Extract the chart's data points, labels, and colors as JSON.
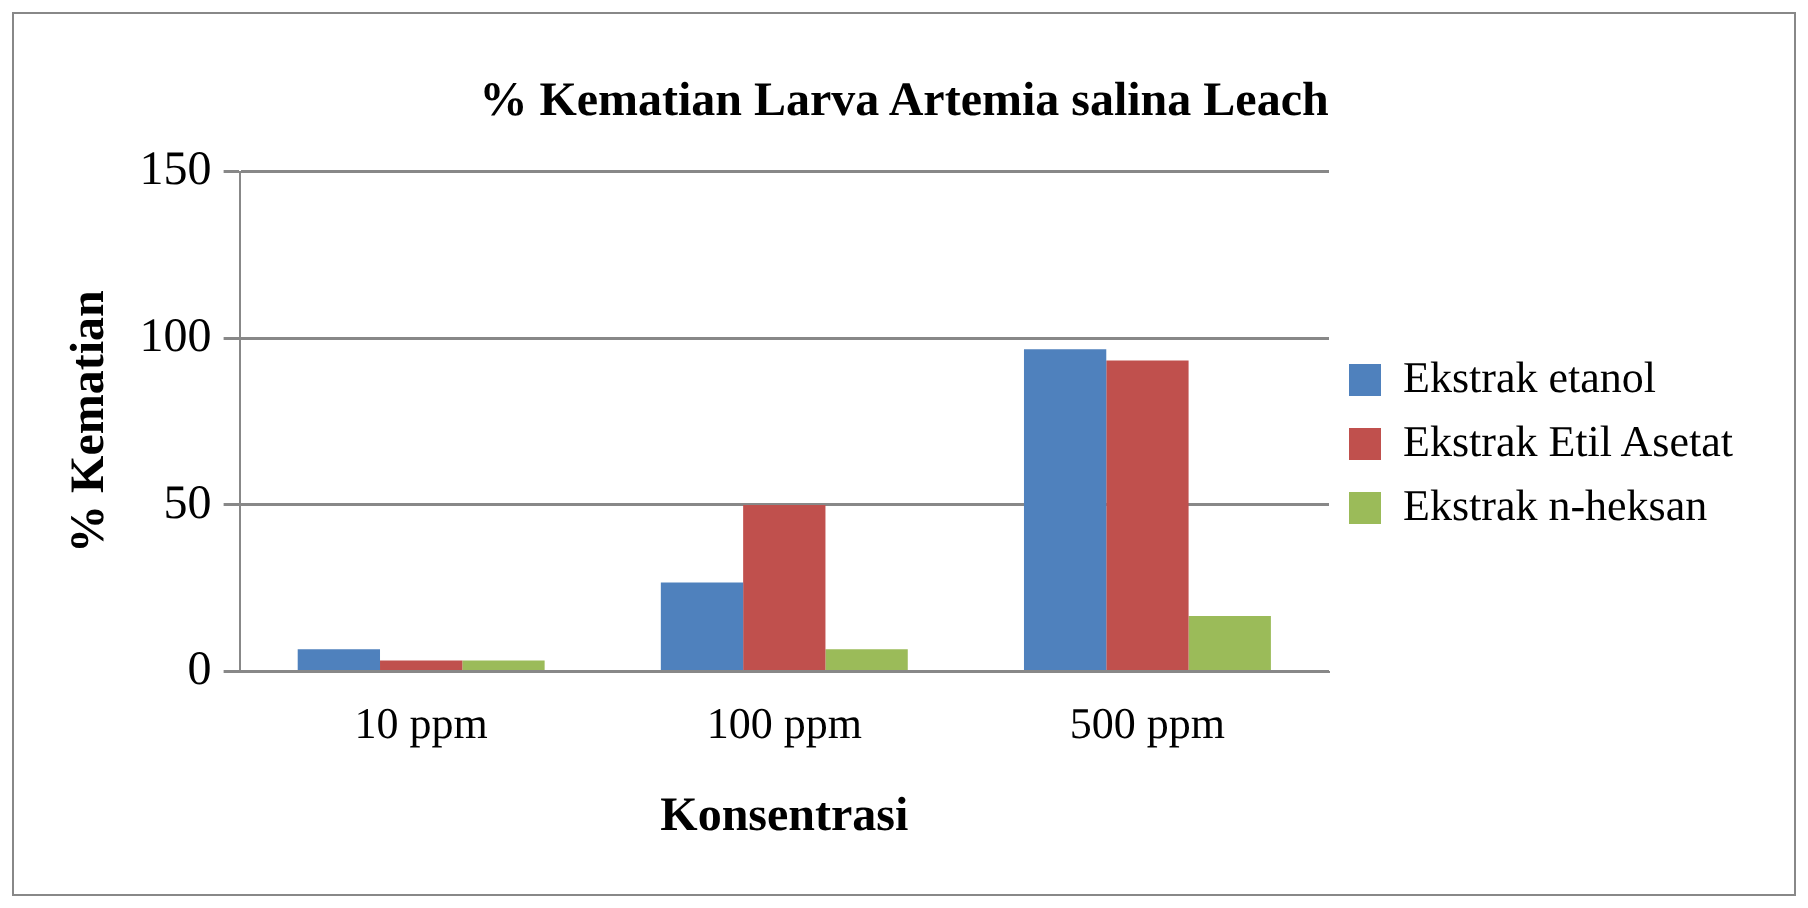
{
  "chart_data": {
    "type": "bar",
    "title": "% Kematian Larva Artemia salina Leach",
    "xlabel": "Konsentrasi",
    "ylabel": "% Kematian",
    "categories": [
      "10 ppm",
      "100 ppm",
      "500 ppm"
    ],
    "series": [
      {
        "name": "Ekstrak etanol",
        "color": "#4f81bd",
        "values": [
          6.7,
          26.7,
          96.7
        ]
      },
      {
        "name": "Ekstrak Etil Asetat",
        "color": "#c0504d",
        "values": [
          3.3,
          50,
          93.3
        ]
      },
      {
        "name": "Ekstrak n-heksan",
        "color": "#9bbb59",
        "values": [
          3.3,
          6.7,
          16.7
        ]
      }
    ],
    "ylim": [
      0,
      150
    ],
    "yticks": [
      0,
      50,
      100,
      150
    ],
    "grid": "y",
    "legend": "right"
  }
}
